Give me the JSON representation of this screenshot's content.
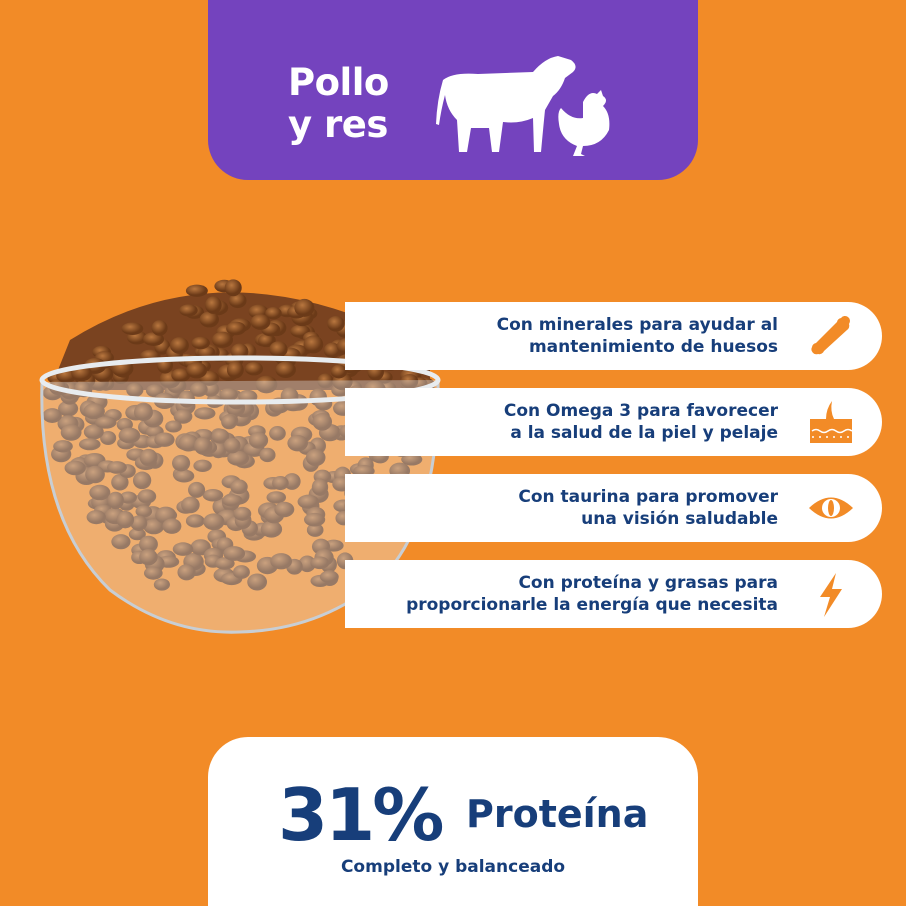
{
  "banner": {
    "title_line1": "Pollo",
    "title_line2": "y res",
    "icons": [
      "cow-icon",
      "chicken-icon"
    ]
  },
  "benefits": [
    {
      "text": "Con minerales para ayudar al\nmantenimiento de huesos",
      "icon": "bone-icon"
    },
    {
      "text": "Con Omega 3 para favorecer\na la salud de la piel y pelaje",
      "icon": "skin-hair-icon"
    },
    {
      "text": "Con taurina para promover\nuna visión saludable",
      "icon": "eye-icon"
    },
    {
      "text": "Con proteína y grasas para\nproporcionarle la energía que necesita",
      "icon": "lightning-icon"
    }
  ],
  "protein": {
    "percent": "31%",
    "label": "Proteína",
    "subtitle": "Completo y balanceado"
  },
  "colors": {
    "background": "#F28B27",
    "banner": "#7443BE",
    "text": "#173E7A",
    "icon": "#F28B27"
  }
}
